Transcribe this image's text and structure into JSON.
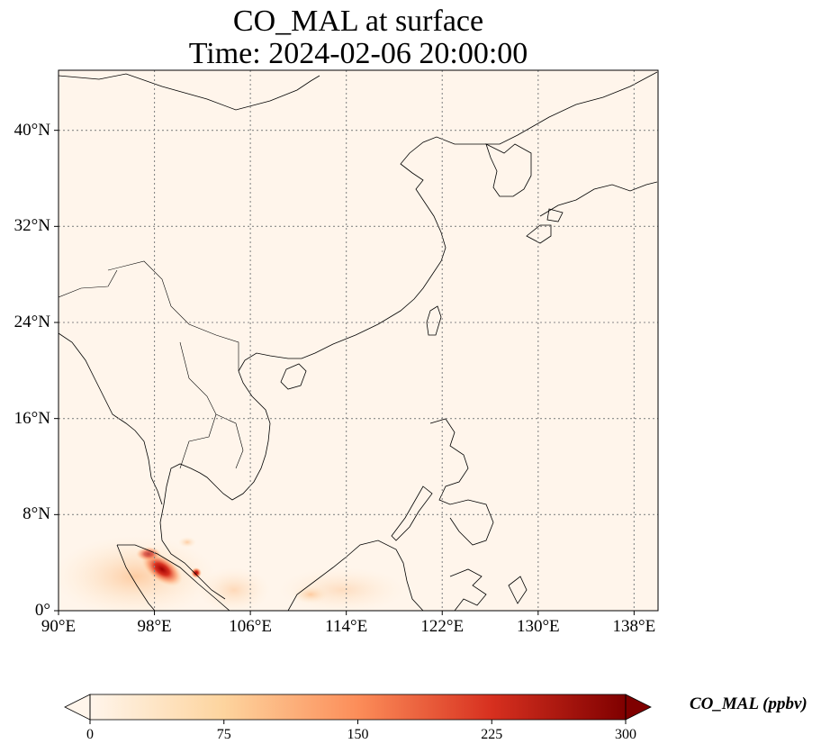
{
  "title_line1": "CO_MAL at surface",
  "title_line2": "Time: 2024-02-06 20:00:00",
  "map": {
    "lon_range": [
      90,
      140
    ],
    "lat_range": [
      0,
      45
    ],
    "x_ticks": [
      {
        "lon": 90,
        "label": "90°E"
      },
      {
        "lon": 98,
        "label": "98°E"
      },
      {
        "lon": 106,
        "label": "106°E"
      },
      {
        "lon": 114,
        "label": "114°E"
      },
      {
        "lon": 122,
        "label": "122°E"
      },
      {
        "lon": 130,
        "label": "130°E"
      },
      {
        "lon": 138,
        "label": "138°E"
      }
    ],
    "y_ticks": [
      {
        "lat": 0,
        "label": "0°"
      },
      {
        "lat": 8,
        "label": "8°N"
      },
      {
        "lat": 16,
        "label": "16°N"
      },
      {
        "lat": 24,
        "label": "24°N"
      },
      {
        "lat": 32,
        "label": "32°N"
      },
      {
        "lat": 40,
        "label": "40°N"
      }
    ],
    "gridlines": "dotted",
    "background_color": "#fff5eb",
    "coastline_color": "#000000"
  },
  "colorbar": {
    "label": "CO_MAL (ppbv)",
    "colormap": "OrRd",
    "min": 0,
    "max": 300,
    "extend": "both",
    "ticks": [
      {
        "value": 0,
        "label": "0"
      },
      {
        "value": 75,
        "label": "75"
      },
      {
        "value": 150,
        "label": "150"
      },
      {
        "value": 225,
        "label": "225"
      },
      {
        "value": 300,
        "label": "300"
      }
    ]
  }
}
